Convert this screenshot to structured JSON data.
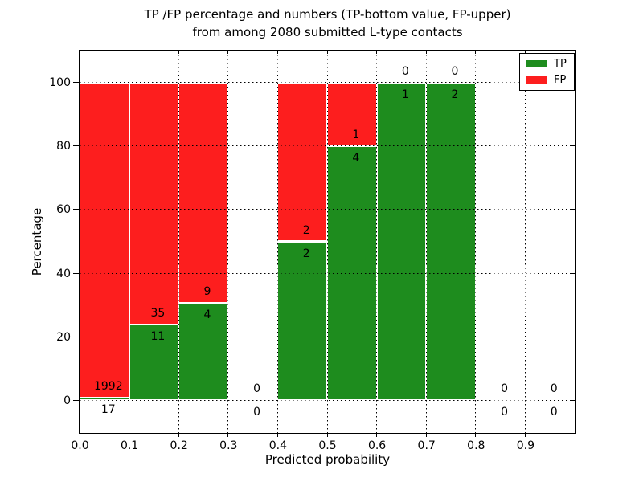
{
  "figure": {
    "title_line1": "TP /FP percentage and numbers (TP-bottom value, FP-upper)",
    "title_line2": "from among 2080 submitted L-type contacts",
    "xlabel": "Predicted probability",
    "ylabel": "Percentage",
    "total_submitted_contacts": 2080
  },
  "chart_data": {
    "type": "bar",
    "stacked": true,
    "title": "TP /FP percentage and numbers (TP-bottom value, FP-upper) from among 2080 submitted L-type contacts",
    "xlabel": "Predicted probability",
    "ylabel": "Percentage",
    "categories": [
      "0.0-0.1",
      "0.1-0.2",
      "0.2-0.3",
      "0.3-0.4",
      "0.4-0.5",
      "0.5-0.6",
      "0.6-0.7",
      "0.7-0.8",
      "0.8-0.9",
      "0.9-1.0"
    ],
    "bin_starts": [
      0.0,
      0.1,
      0.2,
      0.3,
      0.4,
      0.5,
      0.6,
      0.7,
      0.8,
      0.9
    ],
    "bin_width": 0.1,
    "series": [
      {
        "name": "TP",
        "color": "#1e8c1e",
        "counts": [
          17,
          11,
          4,
          0,
          2,
          4,
          1,
          2,
          0,
          0
        ],
        "percentages": [
          0.85,
          23.91,
          30.77,
          0,
          50,
          80,
          100,
          100,
          0,
          0
        ]
      },
      {
        "name": "FP",
        "color": "#fd1e1e",
        "counts": [
          1992,
          35,
          9,
          0,
          2,
          1,
          0,
          0,
          0,
          0
        ],
        "percentages": [
          99.15,
          76.09,
          69.23,
          0,
          50,
          20,
          0,
          0,
          0,
          0
        ]
      }
    ],
    "annotation_rule": "FP count shown above TP/FP boundary, TP count shown below it",
    "xticks": [
      "0.0",
      "0.1",
      "0.2",
      "0.3",
      "0.4",
      "0.5",
      "0.6",
      "0.7",
      "0.8",
      "0.9"
    ],
    "yticks": [
      0,
      20,
      40,
      60,
      80,
      100
    ],
    "xlim": [
      0.0,
      1.0
    ],
    "ylim": [
      -10,
      110
    ],
    "grid": true,
    "grid_style": "dotted",
    "legend_position": "upper right",
    "legend_entries": [
      "TP",
      "FP"
    ]
  }
}
